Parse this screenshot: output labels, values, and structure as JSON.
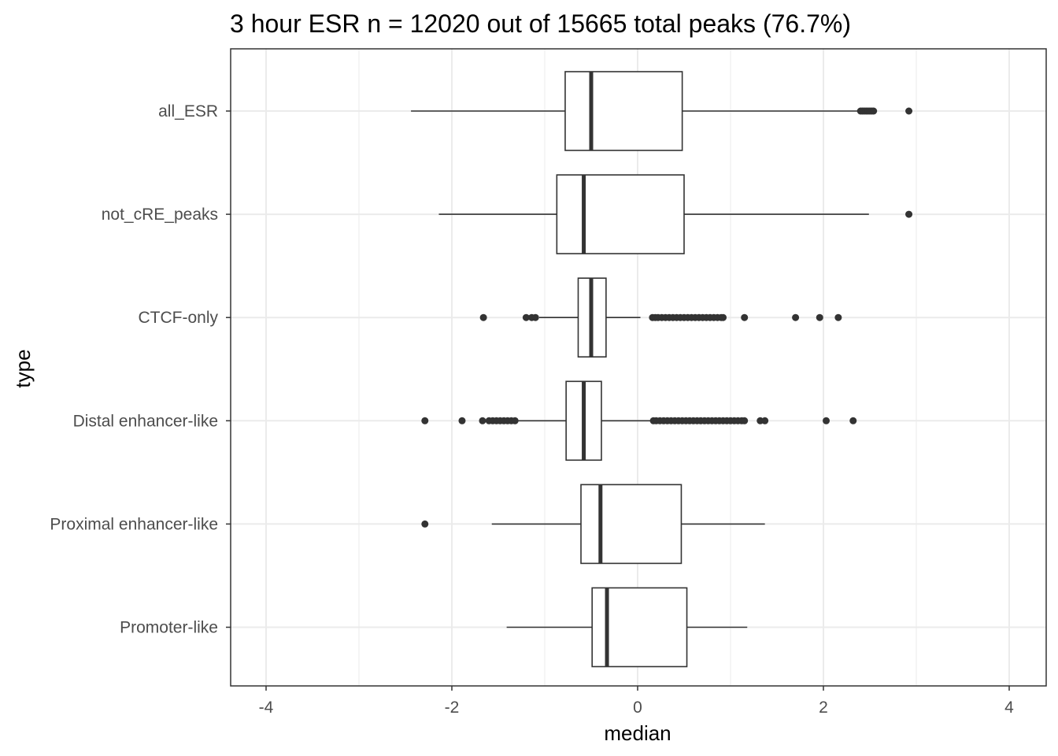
{
  "chart_data": {
    "type": "boxplot",
    "orientation": "horizontal",
    "title": "3 hour ESR n = 12020 out of 15665 total peaks (76.7%)",
    "xlabel": "median",
    "ylabel": "type",
    "xlim": [
      -4.4,
      4.4
    ],
    "x_ticks": [
      -4,
      -2,
      0,
      2,
      4
    ],
    "x_tick_labels": [
      "-4",
      "-2",
      "0",
      "2",
      "4"
    ],
    "grid": true,
    "categories": [
      "all_ESR",
      "not_cRE_peaks",
      "CTCF-only",
      "Distal enhancer-like",
      "Proximal enhancer-like",
      "Promoter-like"
    ],
    "boxes": [
      {
        "category": "all_ESR",
        "whisker_low": -2.44,
        "q1": -0.78,
        "median": -0.5,
        "q3": 0.48,
        "whisker_high": 2.38,
        "outliers": [
          2.4,
          2.42,
          2.44,
          2.46,
          2.48,
          2.5,
          2.52,
          2.54,
          2.92
        ]
      },
      {
        "category": "not_cRE_peaks",
        "whisker_low": -2.14,
        "q1": -0.87,
        "median": -0.58,
        "q3": 0.5,
        "whisker_high": 2.49,
        "outliers": [
          2.92
        ]
      },
      {
        "category": "CTCF-only",
        "whisker_low": -1.06,
        "q1": -0.64,
        "median": -0.5,
        "q3": -0.34,
        "whisker_high": 0.03,
        "outliers": [
          -1.66,
          -1.2,
          -1.14,
          -1.1,
          0.16,
          0.19,
          0.22,
          0.26,
          0.3,
          0.34,
          0.38,
          0.42,
          0.46,
          0.5,
          0.54,
          0.58,
          0.62,
          0.66,
          0.7,
          0.74,
          0.78,
          0.82,
          0.86,
          0.9,
          0.92,
          1.15,
          1.7,
          1.96,
          2.16
        ]
      },
      {
        "category": "Distal enhancer-like",
        "whisker_low": -1.3,
        "q1": -0.77,
        "median": -0.58,
        "q3": -0.39,
        "whisker_high": 0.15,
        "outliers": [
          -2.29,
          -1.89,
          -1.67,
          -1.6,
          -1.56,
          -1.52,
          -1.48,
          -1.44,
          -1.4,
          -1.36,
          -1.32,
          0.17,
          0.2,
          0.24,
          0.28,
          0.32,
          0.36,
          0.4,
          0.44,
          0.48,
          0.52,
          0.56,
          0.6,
          0.64,
          0.68,
          0.72,
          0.76,
          0.8,
          0.84,
          0.88,
          0.92,
          0.96,
          1.0,
          1.04,
          1.08,
          1.12,
          1.15,
          1.32,
          1.37,
          2.03,
          2.32
        ]
      },
      {
        "category": "Proximal enhancer-like",
        "whisker_low": -1.57,
        "q1": -0.61,
        "median": -0.4,
        "q3": 0.47,
        "whisker_high": 1.37,
        "outliers": [
          -2.29
        ]
      },
      {
        "category": "Promoter-like",
        "whisker_low": -1.41,
        "q1": -0.49,
        "median": -0.33,
        "q3": 0.53,
        "whisker_high": 1.18,
        "outliers": []
      }
    ],
    "colors": {
      "box_line": "#333333",
      "box_fill": "#ffffff",
      "outlier": "#333333",
      "grid": "#ebebeb",
      "panel_border": "#333333",
      "tick_text": "#4d4d4d"
    }
  }
}
